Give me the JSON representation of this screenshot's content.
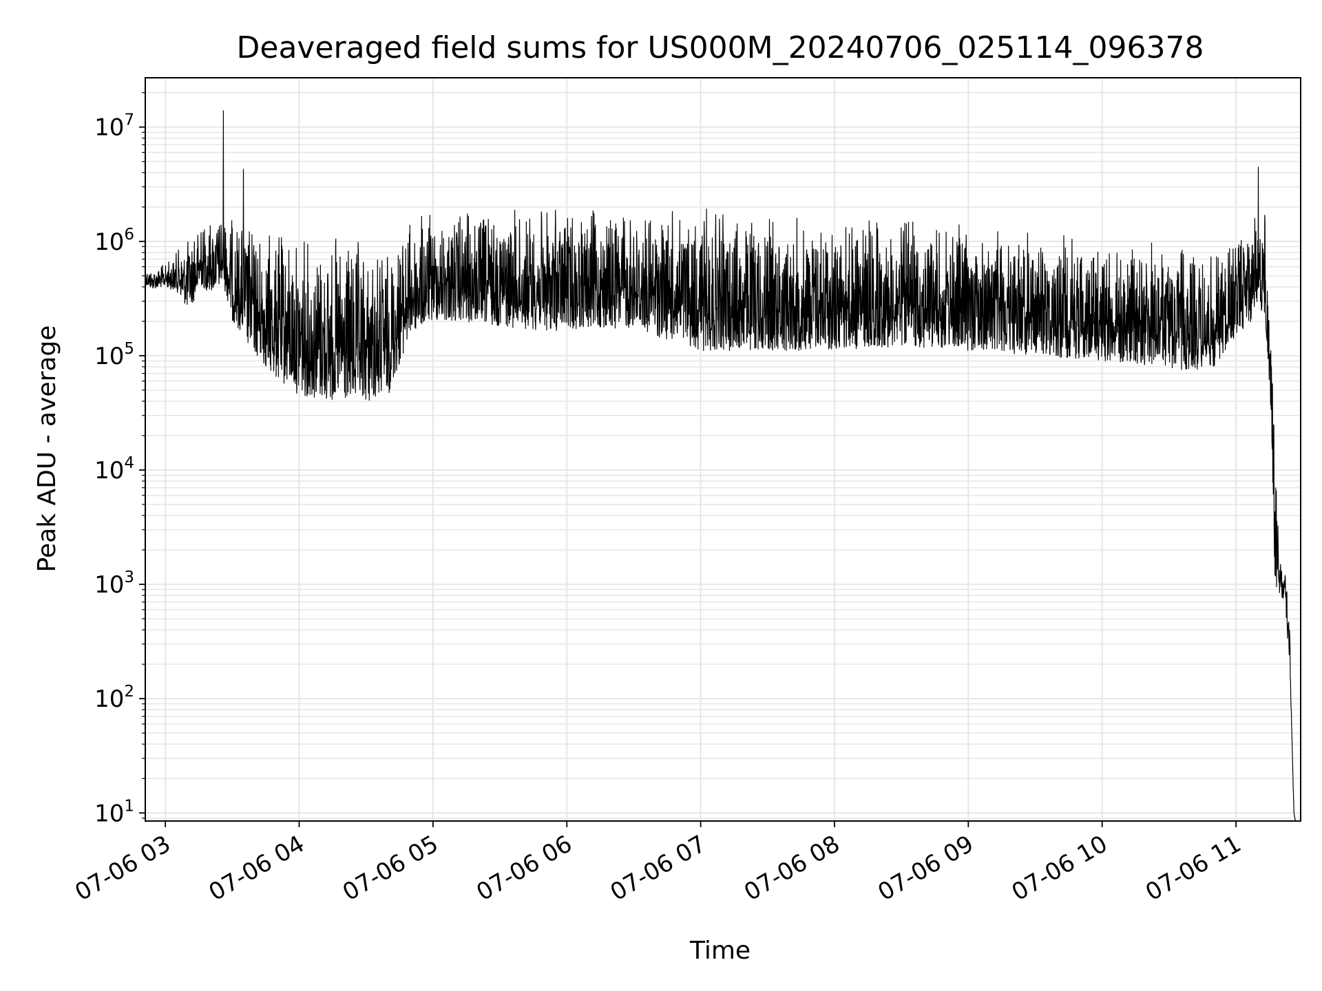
{
  "chart_data": {
    "type": "line",
    "title": "Deaveraged field sums for US000M_20240706_025114_096378",
    "xlabel": "Time",
    "ylabel": "Peak ADU - average",
    "x_scale": "time",
    "y_scale": "log",
    "xlim": [
      "2024-07-06 02:51",
      "2024-07-06 11:29"
    ],
    "ylim": [
      8.5,
      27000000
    ],
    "x_ticks": [
      "2024-07-06 03:00",
      "2024-07-06 04:00",
      "2024-07-06 05:00",
      "2024-07-06 06:00",
      "2024-07-06 07:00",
      "2024-07-06 08:00",
      "2024-07-06 09:00",
      "2024-07-06 10:00",
      "2024-07-06 11:00"
    ],
    "x_tick_labels": [
      "07-06 03",
      "07-06 04",
      "07-06 05",
      "07-06 06",
      "07-06 07",
      "07-06 08",
      "07-06 09",
      "07-06 10",
      "07-06 11"
    ],
    "y_ticks": [
      10,
      100,
      1000,
      10000,
      100000,
      1000000,
      10000000
    ],
    "y_tick_labels": [
      {
        "base": "10",
        "exp": "1"
      },
      {
        "base": "10",
        "exp": "2"
      },
      {
        "base": "10",
        "exp": "3"
      },
      {
        "base": "10",
        "exp": "4"
      },
      {
        "base": "10",
        "exp": "5"
      },
      {
        "base": "10",
        "exp": "6"
      },
      {
        "base": "10",
        "exp": "7"
      }
    ],
    "grid": true,
    "grid_color": "#e6e6e6",
    "line_color": "#000000",
    "series": [
      {
        "name": "",
        "x": [
          "2024-07-06 02:51",
          "2024-07-06 02:54",
          "2024-07-06 03:00",
          "2024-07-06 03:06",
          "2024-07-06 03:10",
          "2024-07-06 03:13",
          "2024-07-06 03:16",
          "2024-07-06 03:20",
          "2024-07-06 03:25",
          "2024-07-06 03:26",
          "2024-07-06 03:27",
          "2024-07-06 03:30",
          "2024-07-06 03:35",
          "2024-07-06 03:36",
          "2024-07-06 03:40",
          "2024-07-06 03:50",
          "2024-07-06 04:00",
          "2024-07-06 04:10",
          "2024-07-06 04:20",
          "2024-07-06 04:30",
          "2024-07-06 04:40",
          "2024-07-06 04:50",
          "2024-07-06 05:00",
          "2024-07-06 05:30",
          "2024-07-06 05:55",
          "2024-07-06 06:00",
          "2024-07-06 06:30",
          "2024-07-06 07:00",
          "2024-07-06 07:30",
          "2024-07-06 08:00",
          "2024-07-06 08:30",
          "2024-07-06 09:00",
          "2024-07-06 09:30",
          "2024-07-06 10:00",
          "2024-07-06 10:30",
          "2024-07-06 10:50",
          "2024-07-06 11:00",
          "2024-07-06 11:07",
          "2024-07-06 11:10",
          "2024-07-06 11:13",
          "2024-07-06 11:15",
          "2024-07-06 11:16",
          "2024-07-06 11:17",
          "2024-07-06 11:20",
          "2024-07-06 11:22",
          "2024-07-06 11:24",
          "2024-07-06 11:26"
        ],
        "values": [
          500000,
          450000,
          500000,
          550000,
          700000,
          1000000,
          1200000,
          500000,
          1400000,
          14000000,
          1200000,
          1300000,
          4300000,
          300000,
          700000,
          300000,
          250000,
          150000,
          100000,
          90000,
          100000,
          400000,
          700000,
          1000000,
          1300000,
          1000000,
          1100000,
          900000,
          1000000,
          800000,
          700000,
          600000,
          550000,
          400000,
          300000,
          250000,
          600000,
          700000,
          4500000,
          1500000,
          100000,
          50000,
          25000,
          1500,
          1200,
          400,
          10
        ],
        "band_low": [
          420000,
          380000,
          400000,
          350000,
          250000,
          300000,
          400000,
          350000,
          400000,
          400000,
          350000,
          200000,
          150000,
          120000,
          100000,
          60000,
          45000,
          40000,
          38000,
          38000,
          45000,
          150000,
          200000,
          180000,
          160000,
          170000,
          170000,
          110000,
          110000,
          110000,
          120000,
          110000,
          100000,
          90000,
          75000,
          75000,
          150000,
          200000,
          300000,
          200000,
          50000,
          25000,
          1000,
          800,
          700,
          200,
          10
        ],
        "band_high": [
          600000,
          600000,
          650000,
          900000,
          1100000,
          1300000,
          1500000,
          1700000,
          1800000,
          1800000,
          1700000,
          1700000,
          1700000,
          1600000,
          1500000,
          1300000,
          1300000,
          1250000,
          1150000,
          1000000,
          1000000,
          1700000,
          1900000,
          2000000,
          2100000,
          2000000,
          2000000,
          2000000,
          1800000,
          1800000,
          1700000,
          1500000,
          1300000,
          1150000,
          1000000,
          800000,
          1200000,
          1800000,
          2000000,
          2000000,
          300000,
          100000,
          30000,
          1500,
          1400,
          500,
          10
        ]
      }
    ]
  }
}
